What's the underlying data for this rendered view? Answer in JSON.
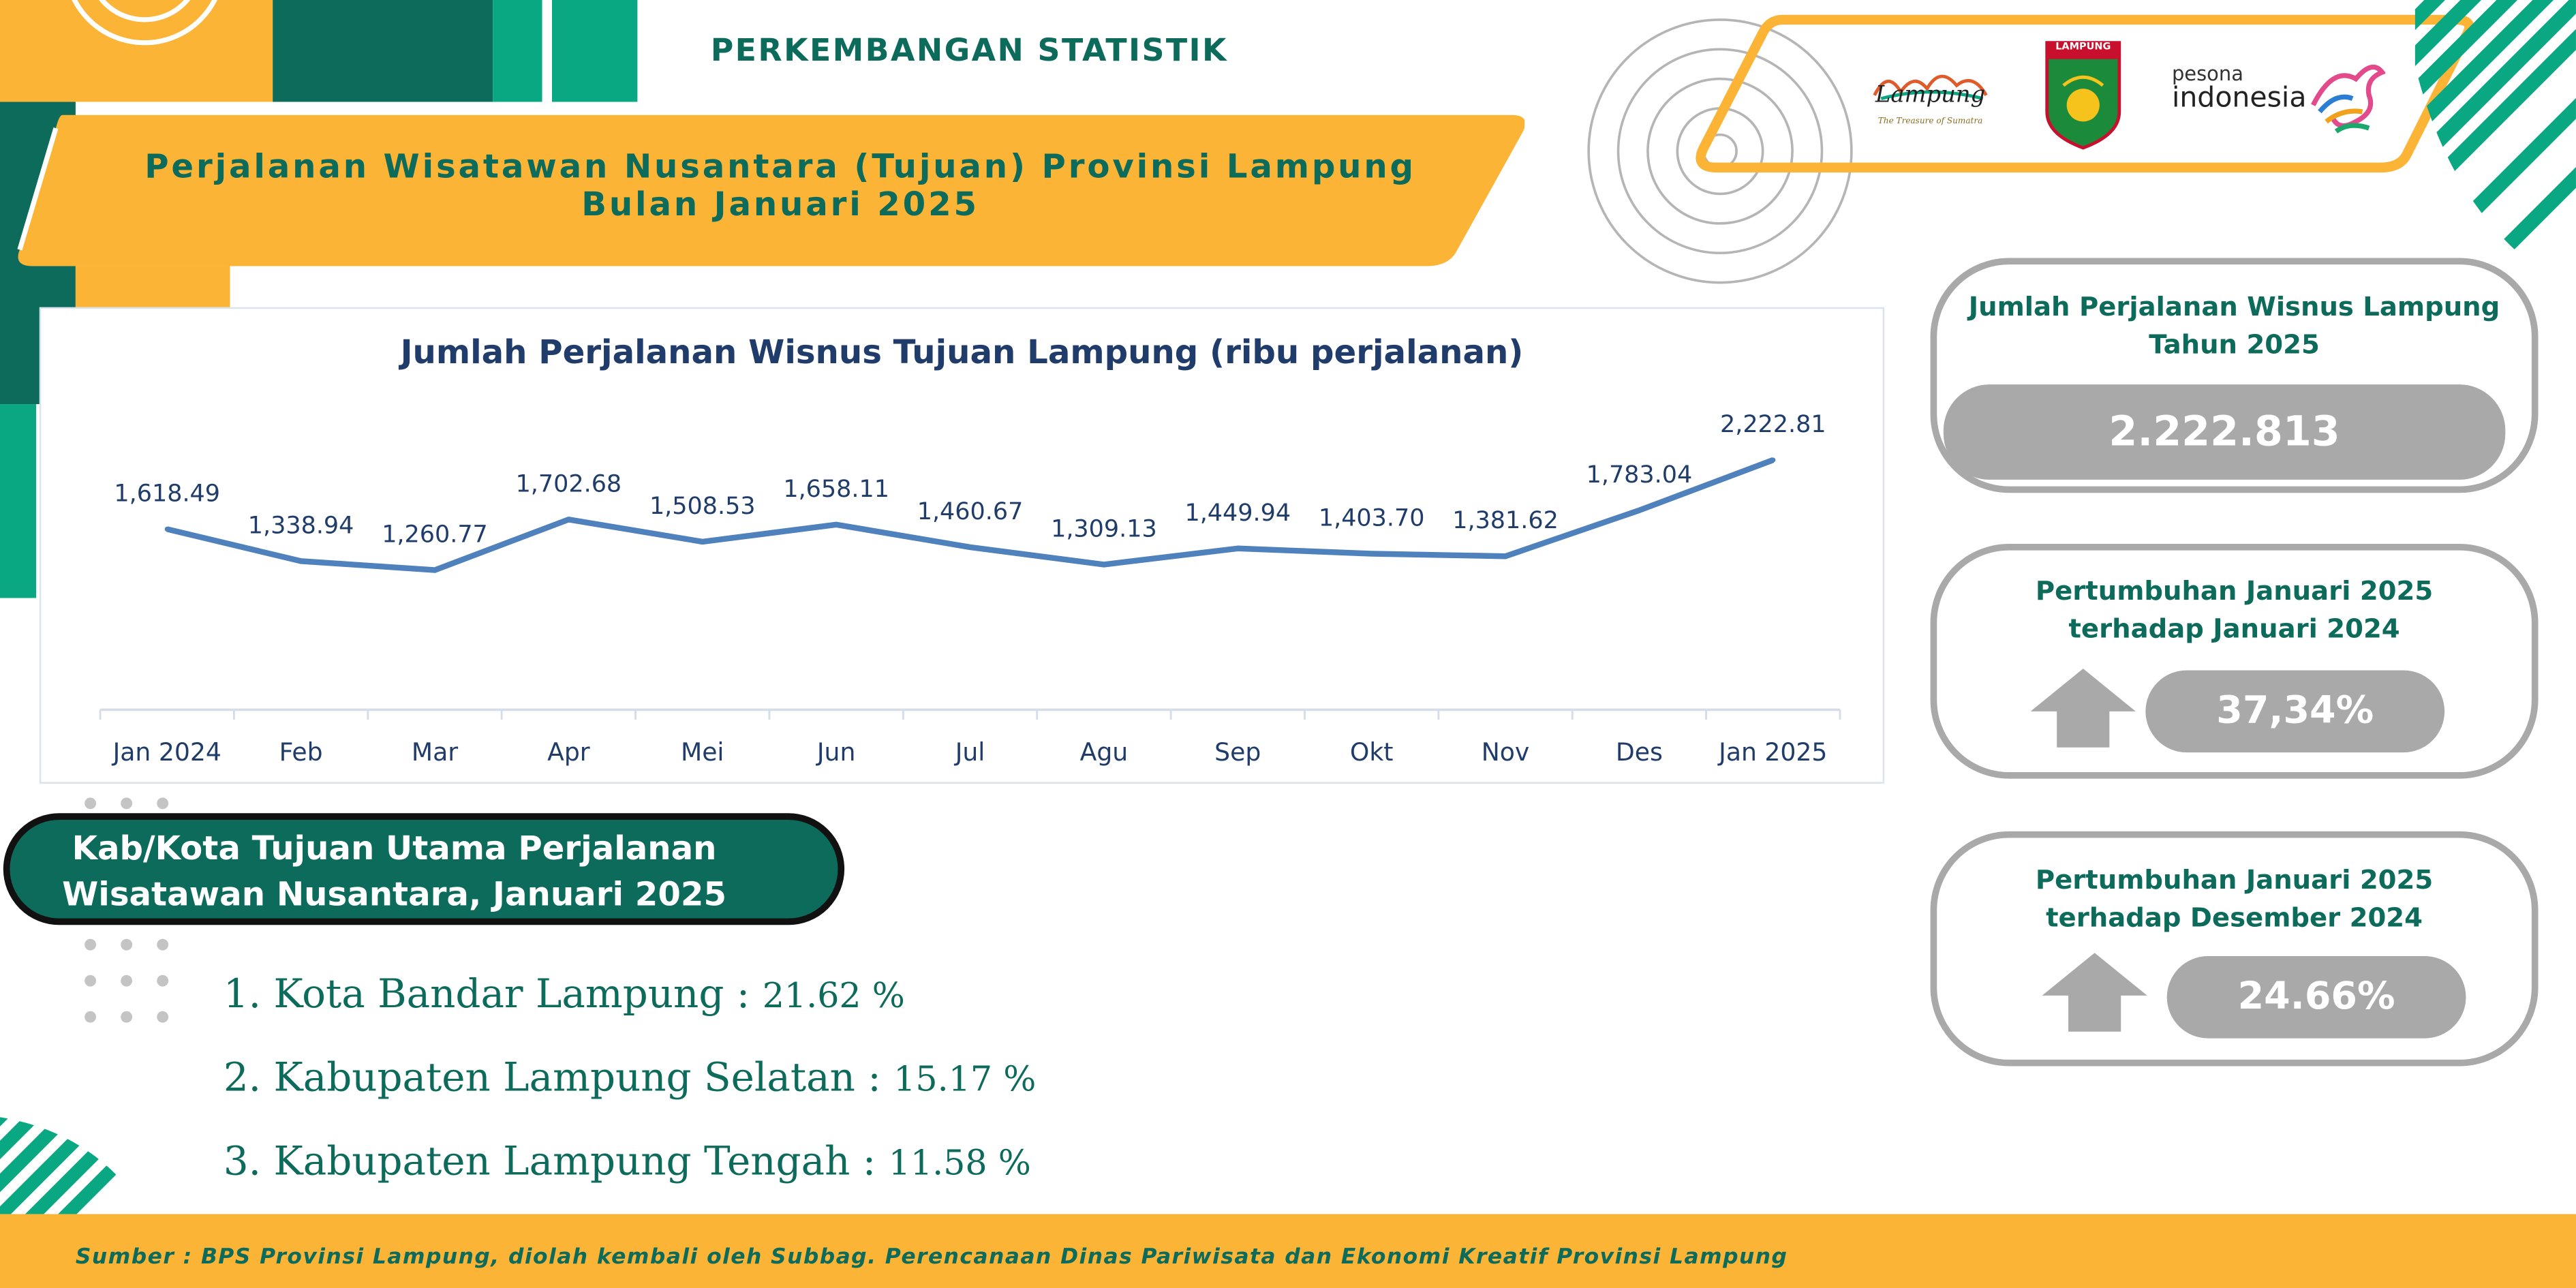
{
  "header": {
    "title": "PERKEMBANGAN STATISTIK",
    "banner_line1": "Perjalanan Wisatawan Nusantara (Tujuan) Provinsi Lampung",
    "banner_line2": "Bulan Januari 2025"
  },
  "logos": {
    "lampung_logo_text": "Lampung",
    "lampung_tagline": "The Treasure of Sumatra",
    "crest_text": "LAMPUNG",
    "pesona_small": "pesona",
    "pesona_big": "indonesia"
  },
  "chart_data": {
    "type": "line",
    "title": "Jumlah Perjalanan Wisnus Tujuan Lampung (ribu perjalanan)",
    "categories": [
      "Jan 2024",
      "Feb",
      "Mar",
      "Apr",
      "Mei",
      "Jun",
      "Jul",
      "Agu",
      "Sep",
      "Okt",
      "Nov",
      "Des",
      "Jan 2025"
    ],
    "series": [
      {
        "values": [
          1618.49,
          1338.94,
          1260.77,
          1702.68,
          1508.53,
          1658.11,
          1460.67,
          1309.13,
          1449.94,
          1403.7,
          1381.62,
          1783.04,
          2222.81
        ],
        "labels": [
          "1,618.49",
          "1,338.94",
          "1,260.77",
          "1,702.68",
          "1,508.53",
          "1,658.11",
          "1,460.67",
          "1,309.13",
          "1,449.94",
          "1,403.70",
          "1,381.62",
          "1,783.04",
          "2,222.81"
        ]
      }
    ],
    "color": "#4f81bd",
    "grid": false,
    "legend": "none"
  },
  "destinations": {
    "title_line1": "Kab/Kota Tujuan Utama Perjalanan",
    "title_line2": "Wisatawan Nusantara, Januari 2025",
    "items": [
      {
        "rank": "1.",
        "name": "Kota Bandar Lampung",
        "sep": ":",
        "value": "21.62 %"
      },
      {
        "rank": "2.",
        "name": "Kabupaten Lampung Selatan",
        "sep": ":",
        "value": "15.17 %"
      },
      {
        "rank": "3.",
        "name": "Kabupaten Lampung Tengah",
        "sep": ":",
        "value": "11.58 %"
      }
    ]
  },
  "cards": {
    "total_title_line1": "Jumlah Perjalanan Wisnus Lampung",
    "total_title_line2": "Tahun 2025",
    "total_value": "2.222.813",
    "yoy_title_line1": "Pertumbuhan Januari 2025",
    "yoy_title_line2": "terhadap Januari 2024",
    "yoy_value": "37,34%",
    "mom_title_line1": "Pertumbuhan Januari 2025",
    "mom_title_line2": "terhadap Desember 2024",
    "mom_value": "24.66%"
  },
  "footer": {
    "source": "Sumber : BPS Provinsi Lampung, diolah kembali oleh Subbag. Perencanaan Dinas Pariwisata dan Ekonomi Kreatif Provinsi Lampung"
  },
  "colors": {
    "teal_dark": "#0d6b5b",
    "teal": "#0aa882",
    "orange": "#fbb436",
    "gray": "#a9a9a9",
    "line": "#4f81bd"
  }
}
